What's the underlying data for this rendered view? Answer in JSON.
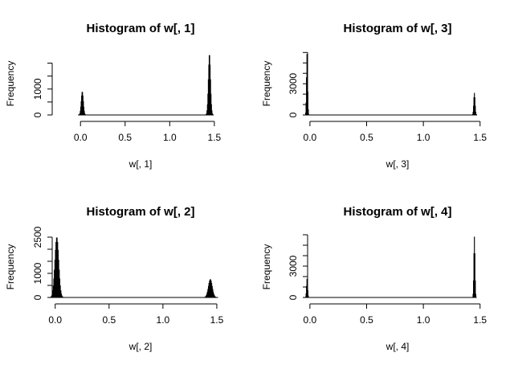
{
  "chart_data": [
    {
      "type": "bar",
      "title": "Histogram of w[, 1]",
      "xlabel": "w[, 1]",
      "ylabel": "Frequency",
      "x_ticks": [
        "0.0",
        "0.5",
        "1.0",
        "1.5"
      ],
      "x_tick_values": [
        0.0,
        0.5,
        1.0,
        1.5
      ],
      "y_ticks": [
        "0",
        "1000"
      ],
      "y_tick_values": [
        0,
        1000
      ],
      "y_minor_ticks": [
        0,
        500,
        1000,
        1500,
        2000
      ],
      "xlim": [
        -0.38,
        1.6
      ],
      "ylim": [
        0,
        2450
      ],
      "bin_width": 0.005,
      "peaks": [
        {
          "center": 0.02,
          "sd": 0.012,
          "height": 900
        },
        {
          "center": 1.445,
          "sd": 0.012,
          "height": 2350
        }
      ]
    },
    {
      "type": "bar",
      "title": "Histogram of w[, 3]",
      "xlabel": "w[, 3]",
      "ylabel": "Frequency",
      "x_ticks": [
        "0.0",
        "0.5",
        "1.0",
        "1.5"
      ],
      "x_tick_values": [
        0.0,
        0.5,
        1.0,
        1.5
      ],
      "y_ticks": [
        "0",
        "3000"
      ],
      "y_tick_values": [
        0,
        3000
      ],
      "y_minor_ticks": [
        0,
        1000,
        2000,
        3000,
        4000,
        5000,
        6000
      ],
      "xlim": [
        -0.07,
        1.53
      ],
      "ylim": [
        0,
        6100
      ],
      "bin_width": 0.004,
      "peaks": [
        {
          "center": -0.025,
          "sd": 0.005,
          "height": 5950
        },
        {
          "center": 1.45,
          "sd": 0.006,
          "height": 2100
        }
      ]
    },
    {
      "type": "bar",
      "title": "Histogram of w[, 2]",
      "xlabel": "w[, 2]",
      "ylabel": "Frequency",
      "x_ticks": [
        "0.0",
        "0.5",
        "1.0",
        "1.5"
      ],
      "x_tick_values": [
        0.0,
        0.5,
        1.0,
        1.5
      ],
      "y_ticks": [
        "0",
        "1000",
        "2500"
      ],
      "y_tick_values": [
        0,
        1000,
        2500
      ],
      "y_minor_ticks": [
        0,
        500,
        1000,
        1500,
        2000,
        2500
      ],
      "xlim": [
        -0.08,
        1.56
      ],
      "ylim": [
        0,
        2600
      ],
      "bin_width": 0.005,
      "peaks": [
        {
          "center": 0.015,
          "sd": 0.018,
          "height": 2500
        },
        {
          "center": 1.44,
          "sd": 0.018,
          "height": 750
        }
      ]
    },
    {
      "type": "bar",
      "title": "Histogram of w[, 4]",
      "xlabel": "w[, 4]",
      "ylabel": "Frequency",
      "x_ticks": [
        "0.0",
        "0.5",
        "1.0",
        "1.5"
      ],
      "x_tick_values": [
        0.0,
        0.5,
        1.0,
        1.5
      ],
      "y_ticks": [
        "0",
        "3000"
      ],
      "y_tick_values": [
        0,
        3000
      ],
      "y_minor_ticks": [
        0,
        1000,
        2000,
        3000,
        4000,
        5000,
        6000
      ],
      "xlim": [
        -0.07,
        1.53
      ],
      "ylim": [
        0,
        6000
      ],
      "bin_width": 0.004,
      "peaks": [
        {
          "center": -0.025,
          "sd": 0.005,
          "height": 1800
        },
        {
          "center": 1.45,
          "sd": 0.005,
          "height": 5800
        }
      ]
    }
  ]
}
